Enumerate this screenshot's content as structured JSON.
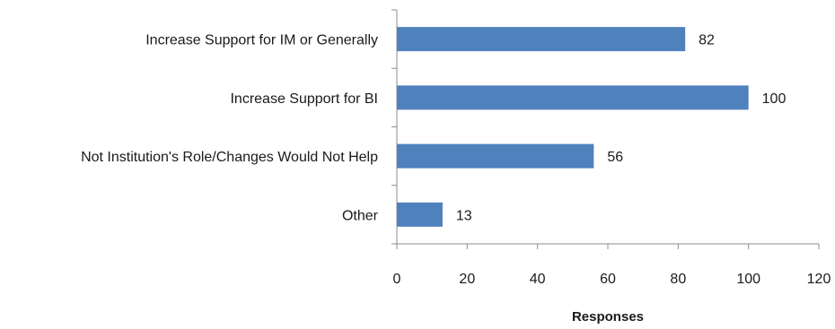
{
  "chart_data": {
    "type": "bar",
    "orientation": "horizontal",
    "categories": [
      "Increase Support for IM or Generally",
      "Increase Support for BI",
      "Not Institution's Role/Changes Would Not Help",
      "Other"
    ],
    "values": [
      82,
      100,
      56,
      13
    ],
    "data_labels": [
      "82",
      "100",
      "56",
      "13"
    ],
    "xlabel": "Responses",
    "ylabel": "",
    "title": "",
    "xlim": [
      0,
      120
    ],
    "xticks": [
      0,
      20,
      40,
      60,
      80,
      100,
      120
    ],
    "xtick_labels": [
      "0",
      "20",
      "40",
      "60",
      "80",
      "100",
      "120"
    ],
    "grid": false,
    "legend": "none",
    "bar_color": "#4f81bd"
  }
}
